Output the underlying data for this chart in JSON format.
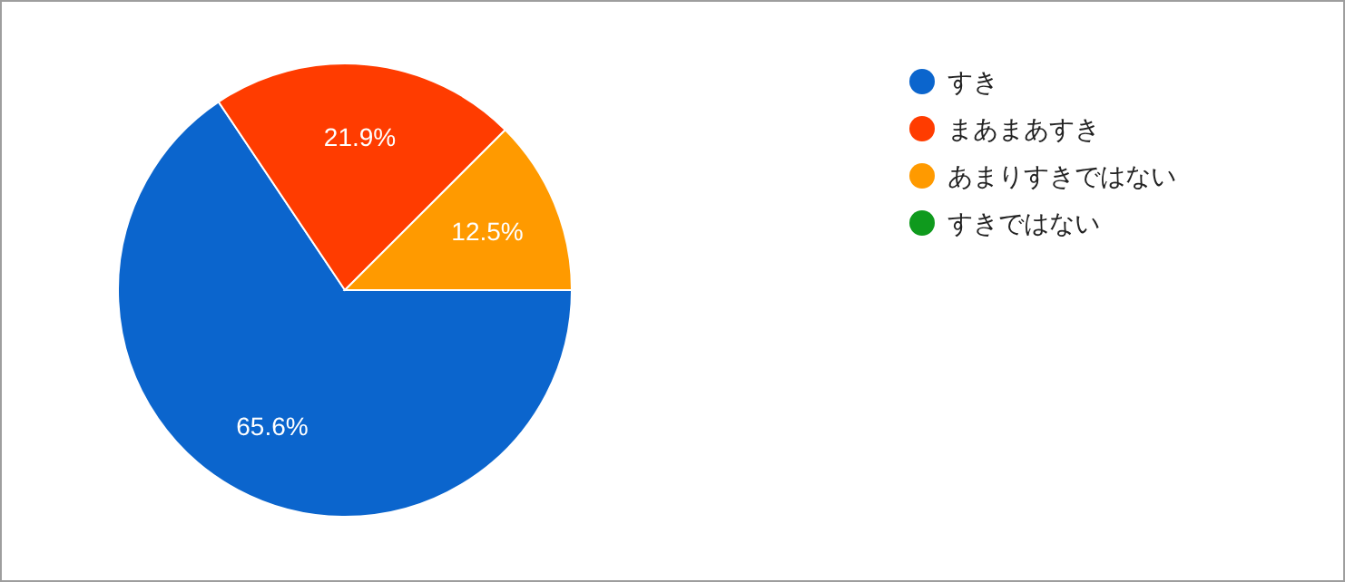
{
  "chart_data": {
    "type": "pie",
    "categories": [
      "すき",
      "まあまあすき",
      "あまりすきではない",
      "すきではない"
    ],
    "values": [
      65.6,
      21.9,
      12.5,
      0
    ],
    "colors": [
      "#0b65cd",
      "#ff3c00",
      "#ff9a00",
      "#0f9a1d"
    ],
    "value_labels": [
      "65.6%",
      "21.9%",
      "12.5%",
      null
    ],
    "legend": "right"
  }
}
